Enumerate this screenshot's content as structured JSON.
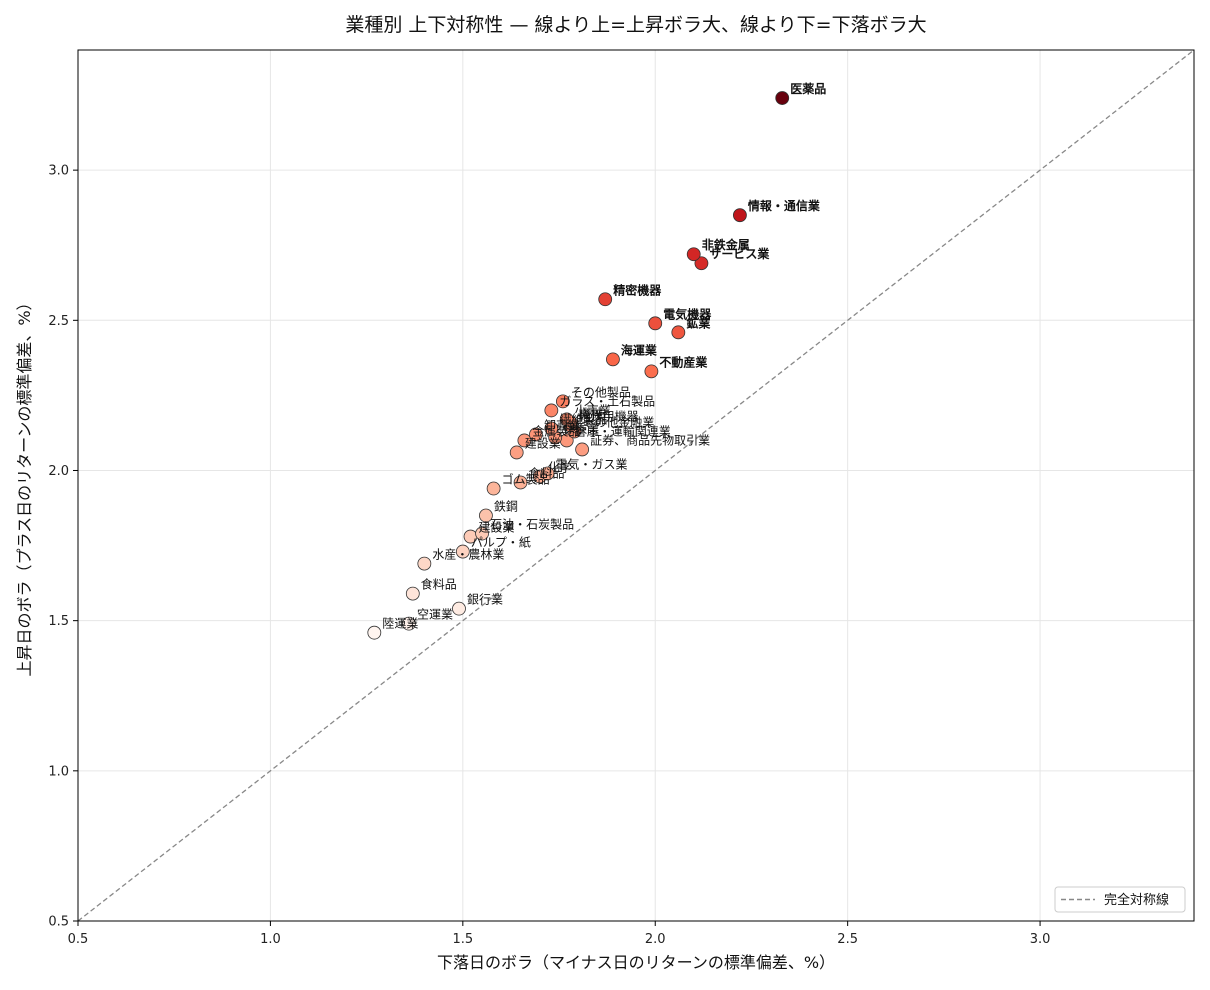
{
  "chart_data": {
    "type": "scatter",
    "title": "業種別 上下対称性 — 線より上=上昇ボラ大、線より下=下落ボラ大",
    "xlabel": "下落日のボラ（マイナス日のリターンの標準偏差、%）",
    "ylabel": "上昇日のボラ（プラス日のリターンの標準偏差、%）",
    "xlim": [
      0.5,
      3.4
    ],
    "ylim": [
      0.5,
      3.4
    ],
    "xticks": [
      0.5,
      1.0,
      1.5,
      2.0,
      2.5,
      3.0
    ],
    "yticks": [
      0.5,
      1.0,
      1.5,
      2.0,
      2.5,
      3.0
    ],
    "grid": true,
    "legend": {
      "position": "lower-right",
      "entries": [
        "完全対称線"
      ]
    },
    "reference_line": {
      "name": "完全対称線",
      "style": "dashed",
      "color": "#888888"
    },
    "color_scale": [
      "#fff5f0",
      "#fcbba1",
      "#fb6a4a",
      "#cb181d",
      "#67000d"
    ],
    "points": [
      {
        "name": "医薬品",
        "x": 2.33,
        "y": 3.24,
        "highlight": true
      },
      {
        "name": "情報・通信業",
        "x": 2.22,
        "y": 2.85,
        "highlight": true
      },
      {
        "name": "非鉄金属",
        "x": 2.1,
        "y": 2.72,
        "highlight": true
      },
      {
        "name": "サービス業",
        "x": 2.12,
        "y": 2.69,
        "highlight": true
      },
      {
        "name": "精密機器",
        "x": 1.87,
        "y": 2.57,
        "highlight": true
      },
      {
        "name": "電気機器",
        "x": 2.0,
        "y": 2.49,
        "highlight": true
      },
      {
        "name": "鉱業",
        "x": 2.06,
        "y": 2.46,
        "highlight": true
      },
      {
        "name": "海運業",
        "x": 1.89,
        "y": 2.37,
        "highlight": true
      },
      {
        "name": "不動産業",
        "x": 1.99,
        "y": 2.33,
        "highlight": true
      },
      {
        "name": "その他製品",
        "x": 1.76,
        "y": 2.23,
        "highlight": false
      },
      {
        "name": "ガラス・土石製品",
        "x": 1.73,
        "y": 2.2,
        "highlight": false
      },
      {
        "name": "小売業",
        "x": 1.77,
        "y": 2.17,
        "highlight": false
      },
      {
        "name": "機械",
        "x": 1.78,
        "y": 2.16,
        "highlight": false
      },
      {
        "name": "輸送用機器",
        "x": 1.78,
        "y": 2.15,
        "highlight": false
      },
      {
        "name": "繊維製品",
        "x": 1.73,
        "y": 2.14,
        "highlight": false
      },
      {
        "name": "その他金融業",
        "x": 1.79,
        "y": 2.13,
        "highlight": false
      },
      {
        "name": "卸売業",
        "x": 1.69,
        "y": 2.12,
        "highlight": false
      },
      {
        "name": "保険業",
        "x": 1.74,
        "y": 2.11,
        "highlight": false
      },
      {
        "name": "倉庫・運輸関連業",
        "x": 1.77,
        "y": 2.1,
        "highlight": false
      },
      {
        "name": "金属製品",
        "x": 1.66,
        "y": 2.1,
        "highlight": false
      },
      {
        "name": "証券、商品先物取引業",
        "x": 1.81,
        "y": 2.07,
        "highlight": false
      },
      {
        "name": "建設業",
        "x": 1.64,
        "y": 2.06,
        "highlight": false
      },
      {
        "name": "電気・ガス業",
        "x": 1.72,
        "y": 1.99,
        "highlight": false
      },
      {
        "name": "化学",
        "x": 1.7,
        "y": 1.98,
        "highlight": false
      },
      {
        "name": "食料品",
        "x": 1.65,
        "y": 1.96,
        "highlight": false
      },
      {
        "name": "ゴム製品",
        "x": 1.58,
        "y": 1.94,
        "highlight": false
      },
      {
        "name": "鉄鋼",
        "x": 1.56,
        "y": 1.85,
        "highlight": false
      },
      {
        "name": "石油・石炭製品",
        "x": 1.55,
        "y": 1.79,
        "highlight": false
      },
      {
        "name": "建設業",
        "x": 1.52,
        "y": 1.78,
        "highlight": false
      },
      {
        "name": "パルプ・紙",
        "x": 1.5,
        "y": 1.73,
        "highlight": false
      },
      {
        "name": "水産・農林業",
        "x": 1.4,
        "y": 1.69,
        "highlight": false
      },
      {
        "name": "食料品",
        "x": 1.37,
        "y": 1.59,
        "highlight": false
      },
      {
        "name": "銀行業",
        "x": 1.49,
        "y": 1.54,
        "highlight": false
      },
      {
        "name": "空運業",
        "x": 1.36,
        "y": 1.49,
        "highlight": false
      },
      {
        "name": "陸運業",
        "x": 1.27,
        "y": 1.46,
        "highlight": false
      }
    ]
  }
}
